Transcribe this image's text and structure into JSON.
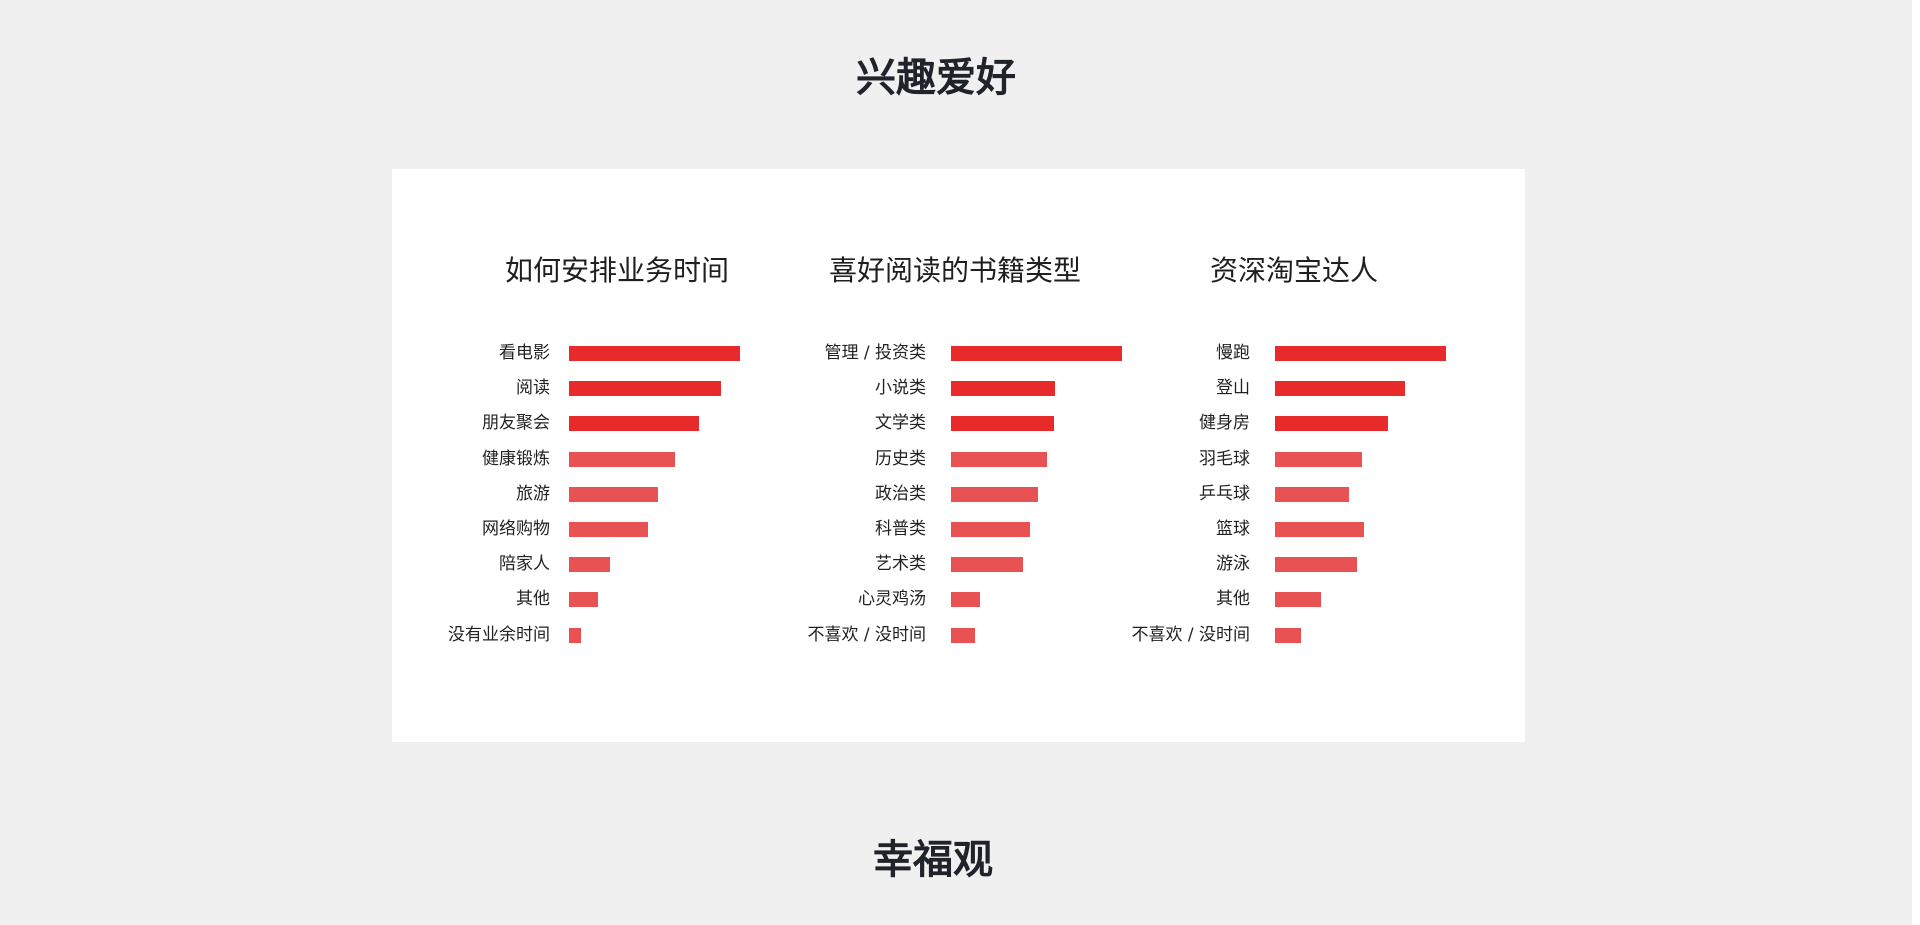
{
  "section_titles": {
    "interests": "兴趣爱好",
    "happiness": "幸福观"
  },
  "colors": {
    "top_bar": "#e82a2a",
    "other_bar": "#e85252",
    "background": "#f0f0f0",
    "card": "#ffffff"
  },
  "chart_data": [
    {
      "type": "bar",
      "orientation": "horizontal",
      "title": "如何安排业务时间",
      "categories": [
        "看电影",
        "阅读",
        "朋友聚会",
        "健康锻炼",
        "旅游",
        "网络购物",
        "陪家人",
        "其他",
        "没有业余时间"
      ],
      "values": [
        100,
        89,
        76,
        62,
        52,
        46,
        24,
        17,
        7
      ],
      "xlim": [
        0,
        100
      ],
      "grid": false,
      "highlight_top": 3
    },
    {
      "type": "bar",
      "orientation": "horizontal",
      "title": "喜好阅读的书籍类型",
      "categories": [
        "管理 / 投资类",
        "小说类",
        "文学类",
        "历史类",
        "政治类",
        "科普类",
        "艺术类",
        "心灵鸡汤",
        "不喜欢 / 没时间"
      ],
      "values": [
        100,
        61,
        60,
        56,
        51,
        46,
        42,
        17,
        14
      ],
      "xlim": [
        0,
        100
      ],
      "grid": false,
      "highlight_top": 3
    },
    {
      "type": "bar",
      "orientation": "horizontal",
      "title": "资深淘宝达人",
      "categories": [
        "慢跑",
        "登山",
        "健身房",
        "羽毛球",
        "乒乓球",
        "篮球",
        "游泳",
        "其他",
        "不喜欢 / 没时间"
      ],
      "values": [
        100,
        76,
        66,
        51,
        43,
        52,
        48,
        27,
        15
      ],
      "xlim": [
        0,
        100
      ],
      "grid": false,
      "highlight_top": 3
    }
  ]
}
